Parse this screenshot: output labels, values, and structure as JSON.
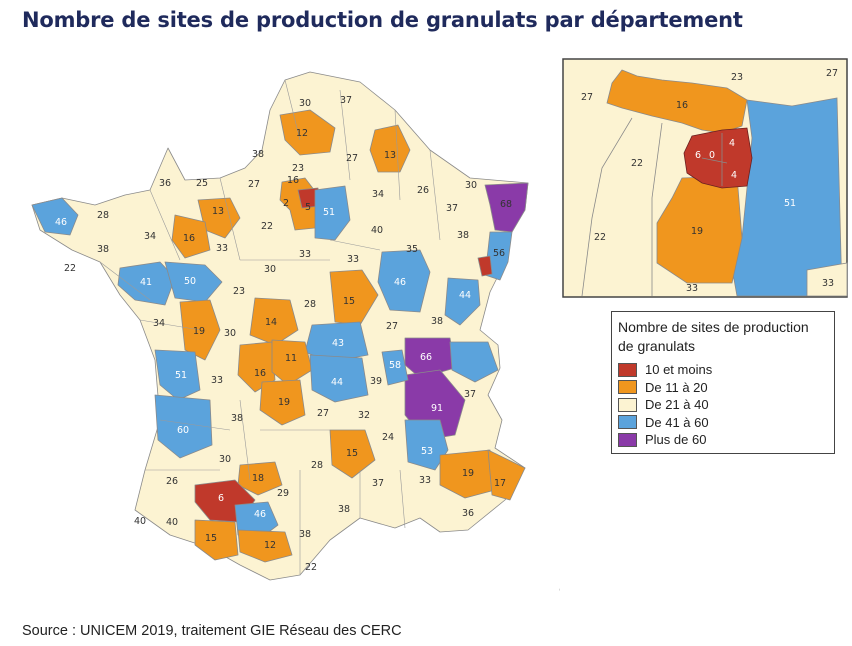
{
  "title": "Nombre de sites de production de granulats par département",
  "source": "Source : UNICEM 2019, traitement GIE Réseau des CERC",
  "legend": {
    "title": "Nombre de sites de production de granulats",
    "items": [
      {
        "label": "10 et moins",
        "color": "#c0392b"
      },
      {
        "label": "De 11 à 20",
        "color": "#f0961e"
      },
      {
        "label": "De 21 à 40",
        "color": "#fcf3d2"
      },
      {
        "label": "De 41 à 60",
        "color": "#5ba3dc"
      },
      {
        "label": "Plus de 60",
        "color": "#8a3aa8"
      }
    ]
  },
  "map_labels": [
    "30",
    "37",
    "12",
    "13",
    "38",
    "23",
    "27",
    "36",
    "25",
    "27",
    "16",
    "2",
    "5",
    "51",
    "34",
    "26",
    "30",
    "46",
    "28",
    "13",
    "22",
    "37",
    "68",
    "34",
    "16",
    "33",
    "40",
    "35",
    "38",
    "38",
    "22",
    "56",
    "41",
    "50",
    "30",
    "33",
    "33",
    "23",
    "15",
    "46",
    "44",
    "34",
    "28",
    "19",
    "30",
    "14",
    "27",
    "38",
    "43",
    "66",
    "11",
    "16",
    "58",
    "51",
    "33",
    "44",
    "39",
    "19",
    "38",
    "27",
    "32",
    "91",
    "37",
    "60",
    "24",
    "15",
    "26",
    "53",
    "30",
    "18",
    "28",
    "19",
    "6",
    "29",
    "37",
    "17",
    "33",
    "40",
    "38",
    "36",
    "46",
    "40",
    "15",
    "12",
    "38",
    "22",
    "24"
  ],
  "inset_labels": [
    "27",
    "23",
    "27",
    "16",
    "22",
    "0",
    "6",
    "4",
    "4",
    "22",
    "51",
    "19",
    "33",
    "33"
  ]
}
